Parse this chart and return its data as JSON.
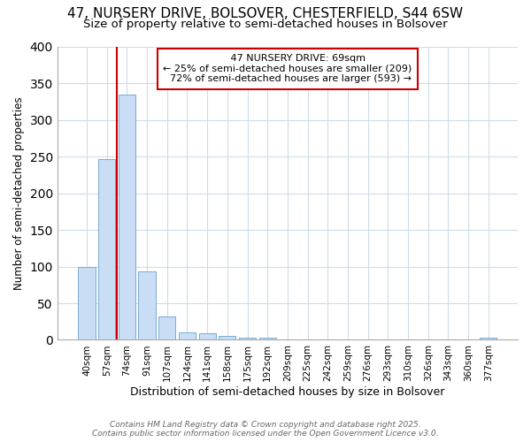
{
  "title1": "47, NURSERY DRIVE, BOLSOVER, CHESTERFIELD, S44 6SW",
  "title2": "Size of property relative to semi-detached houses in Bolsover",
  "xlabel": "Distribution of semi-detached houses by size in Bolsover",
  "ylabel": "Number of semi-detached properties",
  "bar_labels": [
    "40sqm",
    "57sqm",
    "74sqm",
    "91sqm",
    "107sqm",
    "124sqm",
    "141sqm",
    "158sqm",
    "175sqm",
    "192sqm",
    "209sqm",
    "225sqm",
    "242sqm",
    "259sqm",
    "276sqm",
    "293sqm",
    "310sqm",
    "326sqm",
    "343sqm",
    "360sqm",
    "377sqm"
  ],
  "bar_values": [
    100,
    247,
    335,
    93,
    32,
    10,
    9,
    5,
    3,
    3,
    0,
    0,
    0,
    0,
    0,
    0,
    0,
    0,
    0,
    0,
    3
  ],
  "bar_color": "#c9ddf5",
  "bar_edge_color": "#7aaad4",
  "red_line_x": 1.5,
  "annotation_title": "47 NURSERY DRIVE: 69sqm",
  "annotation_line2": "← 25% of semi-detached houses are smaller (209)",
  "annotation_line3": "72% of semi-detached houses are larger (593) →",
  "annotation_box_color": "#cc0000",
  "ylim": [
    0,
    400
  ],
  "yticks": [
    0,
    50,
    100,
    150,
    200,
    250,
    300,
    350,
    400
  ],
  "footer1": "Contains HM Land Registry data © Crown copyright and database right 2025.",
  "footer2": "Contains public sector information licensed under the Open Government Licence v3.0.",
  "bg_color": "#ffffff",
  "grid_color": "#d0dce8",
  "title1_fontsize": 11,
  "title2_fontsize": 9.5
}
